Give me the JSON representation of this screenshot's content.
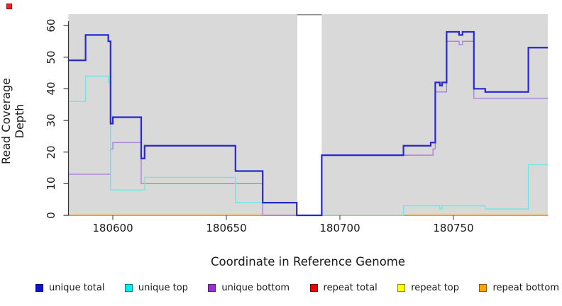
{
  "figure": {
    "x_label": "Coordinate in Reference Genome",
    "y_label": "Read Coverage Depth"
  },
  "decorations": {
    "top_left_marker_color": "#ee2222"
  },
  "legend": {
    "items": [
      {
        "label": "unique total",
        "color": "#1111cc"
      },
      {
        "label": "unique top",
        "color": "#00eeee"
      },
      {
        "label": "unique bottom",
        "color": "#9b2fd6"
      },
      {
        "label": "repeat total",
        "color": "#ee0000"
      },
      {
        "label": "repeat top",
        "color": "#ffff00"
      },
      {
        "label": "repeat bottom",
        "color": "#ffa500"
      }
    ]
  },
  "chart_data": {
    "type": "line",
    "subtype": "step",
    "title": "",
    "xlabel": "Coordinate in Reference Genome",
    "ylabel": "Read Coverage Depth",
    "xlim": [
      180580.5,
      180791.6
    ],
    "ylim": [
      0,
      63.6
    ],
    "x_ticks": [
      180600,
      180650,
      180700,
      180750
    ],
    "y_ticks": [
      0,
      10,
      20,
      30,
      40,
      50,
      60
    ],
    "grid": false,
    "legend_position": "bottom",
    "panel_background": "#d9d9d9",
    "gap_region": {
      "x_start": 180681,
      "x_end": 180692
    },
    "series": [
      {
        "name": "unique total",
        "color": "#2727d3",
        "line_width": 2.2,
        "steps": [
          [
            180580.5,
            49
          ],
          [
            180588,
            57
          ],
          [
            180598,
            55
          ],
          [
            180599,
            29
          ],
          [
            180600,
            31
          ],
          [
            180612.5,
            18
          ],
          [
            180614,
            22
          ],
          [
            180654,
            14
          ],
          [
            180666,
            4
          ],
          [
            180681,
            0
          ],
          [
            180692,
            19
          ],
          [
            180728,
            22
          ],
          [
            180740,
            23
          ],
          [
            180742,
            42
          ],
          [
            180744,
            41
          ],
          [
            180745,
            42
          ],
          [
            180747,
            58
          ],
          [
            180752.5,
            57
          ],
          [
            180754,
            58
          ],
          [
            180759,
            40
          ],
          [
            180764,
            39
          ],
          [
            180783,
            53
          ]
        ]
      },
      {
        "name": "unique top",
        "color": "#6ee7e7",
        "line_width": 1.4,
        "steps": [
          [
            180580.5,
            36
          ],
          [
            180588,
            44
          ],
          [
            180598,
            42
          ],
          [
            180599,
            8
          ],
          [
            180614,
            12
          ],
          [
            180654,
            4
          ],
          [
            180681,
            0
          ],
          [
            180728,
            3
          ],
          [
            180744,
            2
          ],
          [
            180745,
            3
          ],
          [
            180764,
            2
          ],
          [
            180783,
            16
          ]
        ]
      },
      {
        "name": "unique bottom",
        "color": "#ab7fe0",
        "line_width": 1.4,
        "steps": [
          [
            180580.5,
            13
          ],
          [
            180599,
            21
          ],
          [
            180600,
            23
          ],
          [
            180612.5,
            10
          ],
          [
            180666,
            0
          ],
          [
            180692,
            19
          ],
          [
            180741,
            21
          ],
          [
            180742,
            39
          ],
          [
            180747,
            55
          ],
          [
            180752.5,
            54
          ],
          [
            180754,
            55
          ],
          [
            180759,
            37
          ]
        ]
      },
      {
        "name": "repeat total",
        "color": "#cc0000",
        "line_width": 1.4,
        "steps": [
          [
            180580.5,
            0
          ]
        ]
      },
      {
        "name": "repeat top",
        "color": "#eeee00",
        "line_width": 1.4,
        "steps": [
          [
            180580.5,
            0
          ]
        ]
      },
      {
        "name": "repeat bottom",
        "color": "#ff9d00",
        "line_width": 1.7,
        "steps": [
          [
            180580.5,
            0
          ]
        ]
      }
    ]
  }
}
